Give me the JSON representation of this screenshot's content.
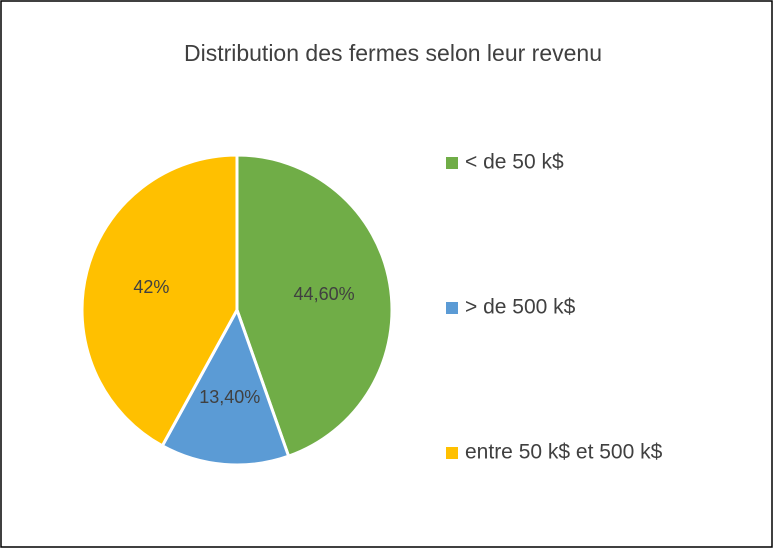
{
  "chart_data": {
    "type": "pie",
    "title": "Distribution des fermes selon leur revenu",
    "categories": [
      "< de 50 k$",
      "> de 500 k$",
      "entre 50 k$ et 500 k$"
    ],
    "values": [
      44.6,
      13.4,
      42
    ],
    "value_labels": [
      "44,60%",
      "13,40%",
      "42%"
    ],
    "colors": [
      "#70ad47",
      "#5b9bd5",
      "#ffc000"
    ],
    "legend": "right"
  }
}
